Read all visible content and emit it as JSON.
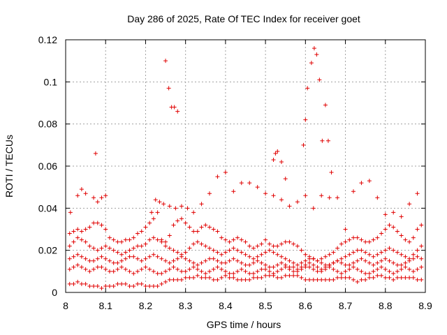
{
  "chart_data": {
    "type": "scatter",
    "title": "Day 286 of 2025, Rate Of TEC Index for receiver goet",
    "xlabel": "GPS time / hours",
    "ylabel": "ROTI / TECUs",
    "xlim": [
      8.0,
      8.9
    ],
    "ylim": [
      0,
      0.12
    ],
    "xticks": [
      "8",
      "8.1",
      "8.2",
      "8.3",
      "8.4",
      "8.5",
      "8.6",
      "8.7",
      "8.8",
      "8.9"
    ],
    "yticks": [
      "0",
      "0.02",
      "0.04",
      "0.06",
      "0.08",
      "0.1",
      "0.12"
    ],
    "grid": true,
    "marker": "plus",
    "color": "#e00000",
    "series": [
      {
        "x": [
          8.012,
          8.03,
          8.04,
          8.05,
          8.07,
          8.08,
          8.09,
          8.1,
          8.215,
          8.225,
          8.235,
          8.245,
          8.26,
          8.275,
          8.29,
          8.305,
          8.32,
          8.34,
          8.36,
          8.38,
          8.4,
          8.42,
          8.44,
          8.46,
          8.48,
          8.5,
          8.52,
          8.54,
          8.56,
          8.58,
          8.6,
          8.62,
          8.64,
          8.66,
          8.68,
          8.7,
          8.72,
          8.74,
          8.76,
          8.78,
          8.8,
          8.82,
          8.84,
          8.86,
          8.88
        ],
        "y": [
          0.038,
          0.046,
          0.049,
          0.047,
          0.045,
          0.043,
          0.045,
          0.046,
          0.038,
          0.044,
          0.043,
          0.042,
          0.041,
          0.04,
          0.041,
          0.04,
          0.038,
          0.042,
          0.047,
          0.055,
          0.057,
          0.048,
          0.052,
          0.052,
          0.05,
          0.047,
          0.046,
          0.044,
          0.041,
          0.043,
          0.046,
          0.04,
          0.046,
          0.045,
          0.045,
          0.03,
          0.048,
          0.052,
          0.053,
          0.045,
          0.037,
          0.038,
          0.036,
          0.042,
          0.047
        ]
      },
      {
        "x": [
          8.01,
          8.02,
          8.03,
          8.04,
          8.05,
          8.06,
          8.07,
          8.08,
          8.09,
          8.1,
          8.11,
          8.12,
          8.13,
          8.14,
          8.15,
          8.16,
          8.17,
          8.18,
          8.19,
          8.2,
          8.21,
          8.22,
          8.23,
          8.24,
          8.25,
          8.26,
          8.27,
          8.28,
          8.29,
          8.3,
          8.31,
          8.32,
          8.33,
          8.34,
          8.35,
          8.36,
          8.37,
          8.38,
          8.39,
          8.4,
          8.41,
          8.42,
          8.43,
          8.44,
          8.45,
          8.46,
          8.47,
          8.48,
          8.49,
          8.5,
          8.51,
          8.52,
          8.53,
          8.54,
          8.55,
          8.56,
          8.57,
          8.58,
          8.59,
          8.6,
          8.61,
          8.62,
          8.63,
          8.64,
          8.65,
          8.66,
          8.67,
          8.68,
          8.69,
          8.7,
          8.71,
          8.72,
          8.73,
          8.74,
          8.75,
          8.76,
          8.77,
          8.78,
          8.79,
          8.8,
          8.81,
          8.82,
          8.83,
          8.84,
          8.85,
          8.86,
          8.87,
          8.88,
          8.89
        ],
        "y": [
          0.028,
          0.029,
          0.03,
          0.029,
          0.03,
          0.031,
          0.033,
          0.033,
          0.032,
          0.03,
          0.026,
          0.025,
          0.024,
          0.024,
          0.025,
          0.025,
          0.026,
          0.028,
          0.029,
          0.031,
          0.033,
          0.035,
          0.038,
          0.025,
          0.024,
          0.027,
          0.032,
          0.034,
          0.035,
          0.033,
          0.031,
          0.029,
          0.029,
          0.031,
          0.032,
          0.031,
          0.03,
          0.029,
          0.026,
          0.025,
          0.024,
          0.025,
          0.026,
          0.025,
          0.024,
          0.022,
          0.021,
          0.022,
          0.023,
          0.025,
          0.023,
          0.022,
          0.022,
          0.023,
          0.024,
          0.024,
          0.023,
          0.022,
          0.02,
          0.018,
          0.017,
          0.016,
          0.015,
          0.016,
          0.017,
          0.018,
          0.019,
          0.021,
          0.023,
          0.024,
          0.025,
          0.026,
          0.026,
          0.025,
          0.024,
          0.024,
          0.025,
          0.026,
          0.028,
          0.03,
          0.032,
          0.031,
          0.029,
          0.027,
          0.025,
          0.024,
          0.026,
          0.03,
          0.032
        ]
      },
      {
        "x": [
          8.01,
          8.02,
          8.03,
          8.04,
          8.05,
          8.06,
          8.07,
          8.08,
          8.09,
          8.1,
          8.11,
          8.12,
          8.13,
          8.14,
          8.15,
          8.16,
          8.17,
          8.18,
          8.19,
          8.2,
          8.21,
          8.22,
          8.23,
          8.24,
          8.25,
          8.26,
          8.27,
          8.28,
          8.29,
          8.3,
          8.31,
          8.32,
          8.33,
          8.34,
          8.35,
          8.36,
          8.37,
          8.38,
          8.39,
          8.4,
          8.41,
          8.42,
          8.43,
          8.44,
          8.45,
          8.46,
          8.47,
          8.48,
          8.49,
          8.5,
          8.51,
          8.52,
          8.53,
          8.54,
          8.55,
          8.56,
          8.57,
          8.58,
          8.59,
          8.6,
          8.61,
          8.62,
          8.63,
          8.64,
          8.65,
          8.66,
          8.67,
          8.68,
          8.69,
          8.7,
          8.71,
          8.72,
          8.73,
          8.74,
          8.75,
          8.76,
          8.77,
          8.78,
          8.79,
          8.8,
          8.81,
          8.82,
          8.83,
          8.84,
          8.85,
          8.86,
          8.87,
          8.88,
          8.89
        ],
        "y": [
          0.022,
          0.024,
          0.026,
          0.025,
          0.024,
          0.022,
          0.021,
          0.02,
          0.021,
          0.022,
          0.021,
          0.02,
          0.019,
          0.018,
          0.019,
          0.02,
          0.021,
          0.022,
          0.022,
          0.023,
          0.025,
          0.026,
          0.025,
          0.024,
          0.022,
          0.021,
          0.02,
          0.019,
          0.018,
          0.019,
          0.021,
          0.023,
          0.024,
          0.023,
          0.022,
          0.021,
          0.02,
          0.019,
          0.018,
          0.019,
          0.02,
          0.021,
          0.02,
          0.019,
          0.018,
          0.017,
          0.016,
          0.017,
          0.018,
          0.019,
          0.02,
          0.019,
          0.018,
          0.017,
          0.016,
          0.015,
          0.014,
          0.013,
          0.014,
          0.015,
          0.016,
          0.016,
          0.015,
          0.014,
          0.013,
          0.013,
          0.014,
          0.015,
          0.016,
          0.017,
          0.018,
          0.019,
          0.02,
          0.02,
          0.019,
          0.018,
          0.017,
          0.018,
          0.019,
          0.02,
          0.021,
          0.02,
          0.019,
          0.018,
          0.017,
          0.016,
          0.018,
          0.02,
          0.022
        ]
      },
      {
        "x": [
          8.01,
          8.02,
          8.03,
          8.04,
          8.05,
          8.06,
          8.07,
          8.08,
          8.09,
          8.1,
          8.11,
          8.12,
          8.13,
          8.14,
          8.15,
          8.16,
          8.17,
          8.18,
          8.19,
          8.2,
          8.21,
          8.22,
          8.23,
          8.24,
          8.25,
          8.26,
          8.27,
          8.28,
          8.29,
          8.3,
          8.31,
          8.32,
          8.33,
          8.34,
          8.35,
          8.36,
          8.37,
          8.38,
          8.39,
          8.4,
          8.41,
          8.42,
          8.43,
          8.44,
          8.45,
          8.46,
          8.47,
          8.48,
          8.49,
          8.5,
          8.51,
          8.52,
          8.53,
          8.54,
          8.55,
          8.56,
          8.57,
          8.58,
          8.59,
          8.6,
          8.61,
          8.62,
          8.63,
          8.64,
          8.65,
          8.66,
          8.67,
          8.68,
          8.69,
          8.7,
          8.71,
          8.72,
          8.73,
          8.74,
          8.75,
          8.76,
          8.77,
          8.78,
          8.79,
          8.8,
          8.81,
          8.82,
          8.83,
          8.84,
          8.85,
          8.86,
          8.87,
          8.88,
          8.89
        ],
        "y": [
          0.016,
          0.017,
          0.018,
          0.017,
          0.016,
          0.015,
          0.015,
          0.016,
          0.017,
          0.016,
          0.015,
          0.014,
          0.014,
          0.015,
          0.016,
          0.017,
          0.017,
          0.016,
          0.015,
          0.016,
          0.017,
          0.018,
          0.017,
          0.016,
          0.015,
          0.014,
          0.015,
          0.016,
          0.017,
          0.016,
          0.015,
          0.014,
          0.013,
          0.014,
          0.015,
          0.016,
          0.016,
          0.015,
          0.014,
          0.014,
          0.015,
          0.016,
          0.015,
          0.014,
          0.013,
          0.013,
          0.014,
          0.015,
          0.014,
          0.013,
          0.012,
          0.012,
          0.013,
          0.014,
          0.013,
          0.012,
          0.012,
          0.011,
          0.012,
          0.013,
          0.014,
          0.013,
          0.012,
          0.011,
          0.012,
          0.013,
          0.014,
          0.015,
          0.014,
          0.013,
          0.013,
          0.014,
          0.015,
          0.016,
          0.015,
          0.014,
          0.013,
          0.014,
          0.015,
          0.016,
          0.015,
          0.014,
          0.013,
          0.013,
          0.014,
          0.015,
          0.016,
          0.017,
          0.016
        ]
      },
      {
        "x": [
          8.01,
          8.02,
          8.03,
          8.04,
          8.05,
          8.06,
          8.07,
          8.08,
          8.09,
          8.1,
          8.11,
          8.12,
          8.13,
          8.14,
          8.15,
          8.16,
          8.17,
          8.18,
          8.19,
          8.2,
          8.21,
          8.22,
          8.23,
          8.24,
          8.25,
          8.26,
          8.27,
          8.28,
          8.29,
          8.3,
          8.31,
          8.32,
          8.33,
          8.34,
          8.35,
          8.36,
          8.37,
          8.38,
          8.39,
          8.4,
          8.41,
          8.42,
          8.43,
          8.44,
          8.45,
          8.46,
          8.47,
          8.48,
          8.49,
          8.5,
          8.51,
          8.52,
          8.53,
          8.54,
          8.55,
          8.56,
          8.57,
          8.58,
          8.59,
          8.6,
          8.61,
          8.62,
          8.63,
          8.64,
          8.65,
          8.66,
          8.67,
          8.68,
          8.69,
          8.7,
          8.71,
          8.72,
          8.73,
          8.74,
          8.75,
          8.76,
          8.77,
          8.78,
          8.79,
          8.8,
          8.81,
          8.82,
          8.83,
          8.84,
          8.85,
          8.86,
          8.87,
          8.88,
          8.89
        ],
        "y": [
          0.011,
          0.012,
          0.013,
          0.012,
          0.011,
          0.01,
          0.011,
          0.012,
          0.012,
          0.011,
          0.01,
          0.01,
          0.011,
          0.012,
          0.011,
          0.01,
          0.009,
          0.01,
          0.011,
          0.012,
          0.011,
          0.01,
          0.009,
          0.009,
          0.01,
          0.011,
          0.012,
          0.011,
          0.01,
          0.01,
          0.011,
          0.012,
          0.011,
          0.01,
          0.009,
          0.01,
          0.011,
          0.012,
          0.011,
          0.01,
          0.009,
          0.009,
          0.01,
          0.011,
          0.01,
          0.009,
          0.009,
          0.01,
          0.011,
          0.011,
          0.01,
          0.009,
          0.01,
          0.011,
          0.012,
          0.011,
          0.01,
          0.01,
          0.011,
          0.012,
          0.012,
          0.011,
          0.01,
          0.01,
          0.011,
          0.012,
          0.011,
          0.01,
          0.009,
          0.01,
          0.011,
          0.012,
          0.011,
          0.01,
          0.009,
          0.009,
          0.01,
          0.011,
          0.012,
          0.011,
          0.01,
          0.009,
          0.01,
          0.011,
          0.012,
          0.011,
          0.01,
          0.011,
          0.012
        ]
      },
      {
        "x": [
          8.01,
          8.02,
          8.03,
          8.04,
          8.05,
          8.06,
          8.07,
          8.08,
          8.09,
          8.1,
          8.11,
          8.12,
          8.13,
          8.14,
          8.15,
          8.16,
          8.17,
          8.18,
          8.19,
          8.2,
          8.21,
          8.22,
          8.23,
          8.24,
          8.25,
          8.26,
          8.27,
          8.28,
          8.29,
          8.3,
          8.31,
          8.32,
          8.33,
          8.34,
          8.35,
          8.36,
          8.37,
          8.38,
          8.39,
          8.4,
          8.41,
          8.42,
          8.43,
          8.44,
          8.45,
          8.46,
          8.47,
          8.48,
          8.49,
          8.5,
          8.51,
          8.52,
          8.53,
          8.54,
          8.55,
          8.56,
          8.57,
          8.58,
          8.59,
          8.6,
          8.61,
          8.62,
          8.63,
          8.64,
          8.65,
          8.66,
          8.67,
          8.68,
          8.69,
          8.7,
          8.71,
          8.72,
          8.73,
          8.74,
          8.75,
          8.76,
          8.77,
          8.78,
          8.79,
          8.8,
          8.81,
          8.82,
          8.83,
          8.84,
          8.85,
          8.86,
          8.87,
          8.88,
          8.89
        ],
        "y": [
          0.004,
          0.004,
          0.005,
          0.004,
          0.004,
          0.003,
          0.003,
          0.003,
          0.002,
          0.003,
          0.003,
          0.003,
          0.004,
          0.004,
          0.004,
          0.003,
          0.003,
          0.004,
          0.004,
          0.003,
          0.003,
          0.003,
          0.003,
          0.004,
          0.005,
          0.006,
          0.006,
          0.006,
          0.006,
          0.007,
          0.007,
          0.007,
          0.008,
          0.007,
          0.007,
          0.007,
          0.006,
          0.006,
          0.007,
          0.008,
          0.007,
          0.007,
          0.006,
          0.006,
          0.006,
          0.006,
          0.007,
          0.007,
          0.007,
          0.008,
          0.008,
          0.008,
          0.007,
          0.007,
          0.008,
          0.008,
          0.008,
          0.008,
          0.007,
          0.006,
          0.006,
          0.006,
          0.006,
          0.006,
          0.006,
          0.006,
          0.006,
          0.007,
          0.007,
          0.007,
          0.007,
          0.006,
          0.005,
          0.006,
          0.006,
          0.007,
          0.007,
          0.008,
          0.008,
          0.007,
          0.007,
          0.006,
          0.007,
          0.007,
          0.007,
          0.007,
          0.007,
          0.006,
          0.006
        ]
      },
      {
        "x": [
          8.075,
          8.25,
          8.258,
          8.265,
          8.272,
          8.28,
          8.52,
          8.525,
          8.53,
          8.54,
          8.55,
          8.595,
          8.6,
          8.605,
          8.615,
          8.622,
          8.628,
          8.635,
          8.642,
          8.65,
          8.657,
          8.665
        ],
        "y": [
          0.066,
          0.11,
          0.097,
          0.088,
          0.088,
          0.086,
          0.063,
          0.066,
          0.067,
          0.062,
          0.054,
          0.07,
          0.082,
          0.097,
          0.109,
          0.116,
          0.113,
          0.101,
          0.072,
          0.089,
          0.072,
          0.057
        ]
      }
    ]
  }
}
